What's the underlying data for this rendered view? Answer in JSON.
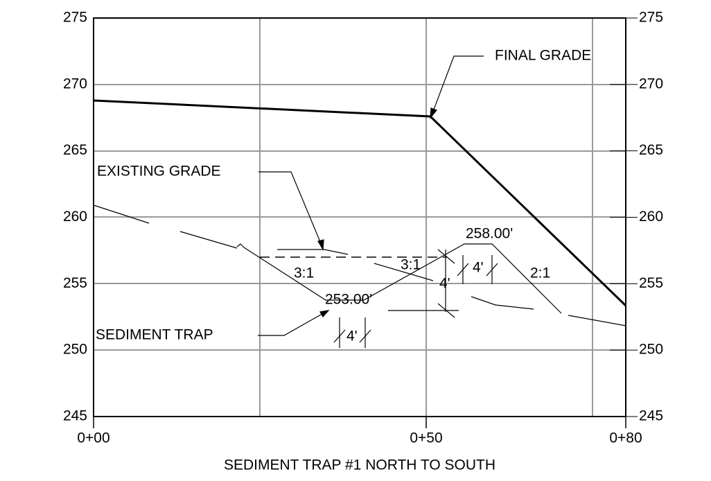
{
  "y_axis": {
    "ticks": [
      "275",
      "270",
      "265",
      "260",
      "255",
      "250",
      "245"
    ]
  },
  "x_axis": {
    "ticks": [
      "0+00",
      "0+50",
      "0+80"
    ],
    "title": "SEDIMENT TRAP #1 NORTH TO SOUTH"
  },
  "callouts": {
    "final_grade": "FINAL GRADE",
    "existing_grade": "EXISTING GRADE",
    "sediment_trap": "SEDIMENT TRAP"
  },
  "dimensions": {
    "bottom_elevation": "253.00'",
    "top_elevation": "258.00'",
    "slope_left": "3:1",
    "slope_inner": "3:1",
    "slope_right": "2:1",
    "depth": "4'",
    "top_width": "4'",
    "bottom_width": "4'"
  }
}
